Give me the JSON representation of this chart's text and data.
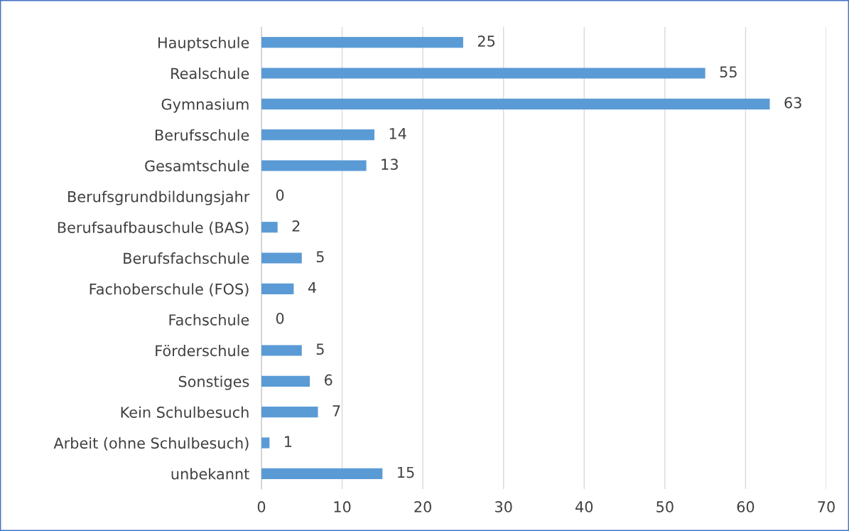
{
  "chart_data": {
    "type": "bar",
    "orientation": "horizontal",
    "categories": [
      "Hauptschule",
      "Realschule",
      "Gymnasium",
      "Berufsschule",
      "Gesamtschule",
      "Berufsgrundbildungsjahr",
      "Berufsaufbauschule (BAS)",
      "Berufsfachschule",
      "Fachoberschule (FOS)",
      "Fachschule",
      "Förderschule",
      "Sonstiges",
      "Kein Schulbesuch",
      "Arbeit (ohne Schulbesuch)",
      "unbekannt"
    ],
    "values": [
      25,
      55,
      63,
      14,
      13,
      0,
      2,
      5,
      4,
      0,
      5,
      6,
      7,
      1,
      15
    ],
    "color": "#5b9bd5",
    "data_labels": true,
    "xlim": [
      0,
      70
    ],
    "xticks": [
      0,
      10,
      20,
      30,
      40,
      50,
      60,
      70
    ],
    "grid": "x",
    "legend": false
  }
}
